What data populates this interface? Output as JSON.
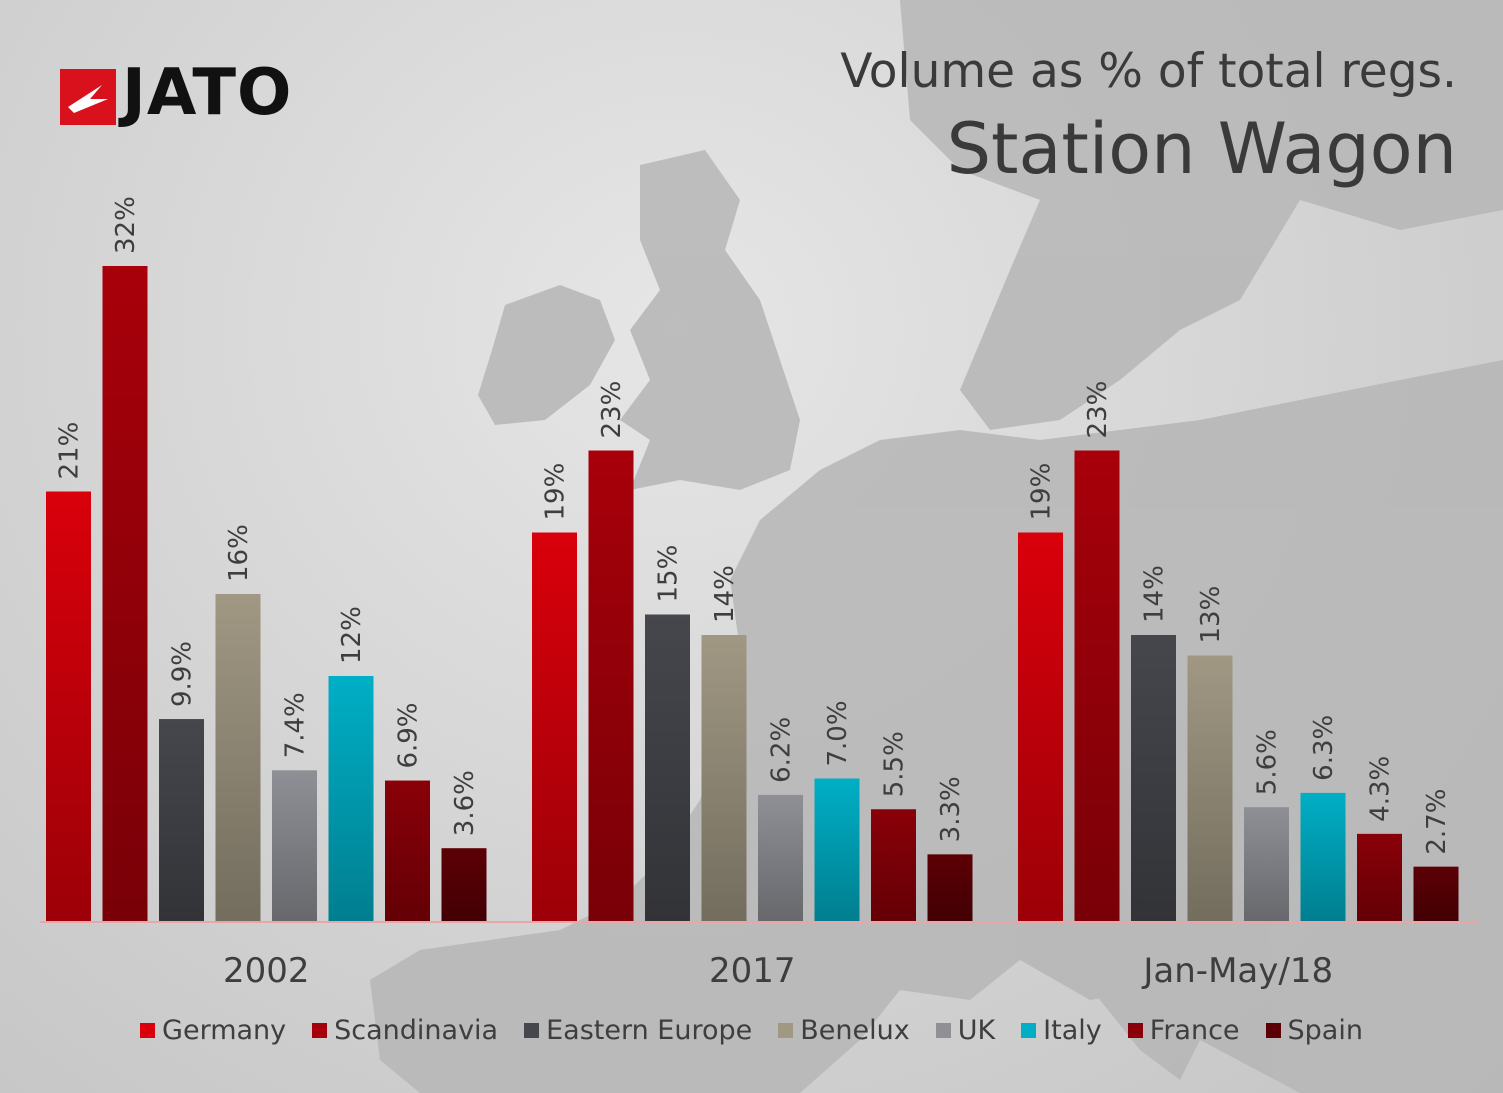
{
  "logo": {
    "text": "JATO"
  },
  "title": {
    "line1": "Volume as % of total regs.",
    "line2": "Station Wagon"
  },
  "chart_data": {
    "type": "bar",
    "title": "Volume as % of total regs. Station Wagon",
    "categories": [
      "2002",
      "2017",
      "Jan-May/18"
    ],
    "ylim": [
      0,
      36
    ],
    "grid": false,
    "legend_position": "bottom",
    "series": [
      {
        "name": "Germany",
        "color": "#d9000b",
        "values": [
          21,
          19,
          19
        ],
        "labels": [
          "21%",
          "19%",
          "19%"
        ]
      },
      {
        "name": "Scandinavia",
        "color": "#a8000a",
        "values": [
          32,
          23,
          23
        ],
        "labels": [
          "32%",
          "23%",
          "23%"
        ]
      },
      {
        "name": "Eastern Europe",
        "color": "#45474d",
        "values": [
          9.9,
          15,
          14
        ],
        "labels": [
          "9.9%",
          "15%",
          "14%"
        ]
      },
      {
        "name": "Benelux",
        "color": "#a09883",
        "values": [
          16,
          14,
          13
        ],
        "labels": [
          "16%",
          "14%",
          "13%"
        ]
      },
      {
        "name": "UK",
        "color": "#8e9096",
        "values": [
          7.4,
          6.2,
          5.6
        ],
        "labels": [
          "7.4%",
          "6.2%",
          "5.6%"
        ]
      },
      {
        "name": "Italy",
        "color": "#00afc6",
        "values": [
          12,
          7.0,
          6.3
        ],
        "labels": [
          "12%",
          "7.0%",
          "6.3%"
        ]
      },
      {
        "name": "France",
        "color": "#8a0008",
        "values": [
          6.9,
          5.5,
          4.3
        ],
        "labels": [
          "6.9%",
          "5.5%",
          "4.3%"
        ]
      },
      {
        "name": "Spain",
        "color": "#5c0005",
        "values": [
          3.6,
          3.3,
          2.7
        ],
        "labels": [
          "3.6%",
          "3.3%",
          "2.7%"
        ]
      }
    ]
  }
}
